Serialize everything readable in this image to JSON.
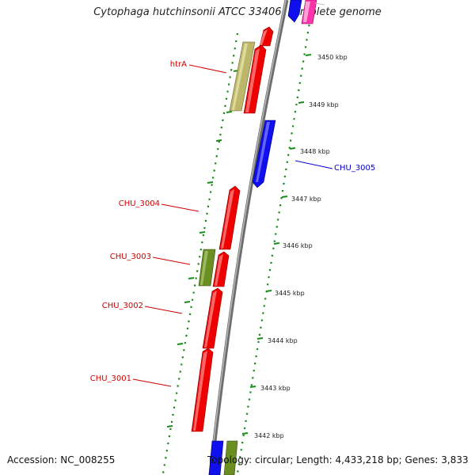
{
  "title": "Cytophaga hutchinsonii ATCC 33406, complete genome",
  "footer": {
    "accession": "Accession: NC_008255",
    "topology": "Topology: circular; Length: 4,433,218 bp; Genes: 3,833"
  },
  "colors": {
    "background": "#ffffff",
    "backbone": "#8c8c8c",
    "tick_dotted": "#1a8a1a",
    "cds_forward": "#ee0000",
    "cds_reverse": "#1010ee",
    "rna_gene": "#6b8e23",
    "other_feature": "#bdb76b",
    "misc": "#ff33aa",
    "label_forward": "#cc0000",
    "label_reverse": "#0000cc"
  },
  "kbp_ticks": [
    "3450 kbp",
    "3449 kbp",
    "3448 kbp",
    "3447 kbp",
    "3446 kbp",
    "3445 kbp",
    "3444 kbp",
    "3443 kbp",
    "3442 kbp"
  ],
  "gene_labels": [
    {
      "name": "htrA",
      "strand": "forward"
    },
    {
      "name": "CHU_3005",
      "strand": "reverse"
    },
    {
      "name": "CHU_3004",
      "strand": "forward"
    },
    {
      "name": "CHU_3003",
      "strand": "forward"
    },
    {
      "name": "CHU_3002",
      "strand": "forward"
    },
    {
      "name": "CHU_3001",
      "strand": "forward"
    }
  ]
}
